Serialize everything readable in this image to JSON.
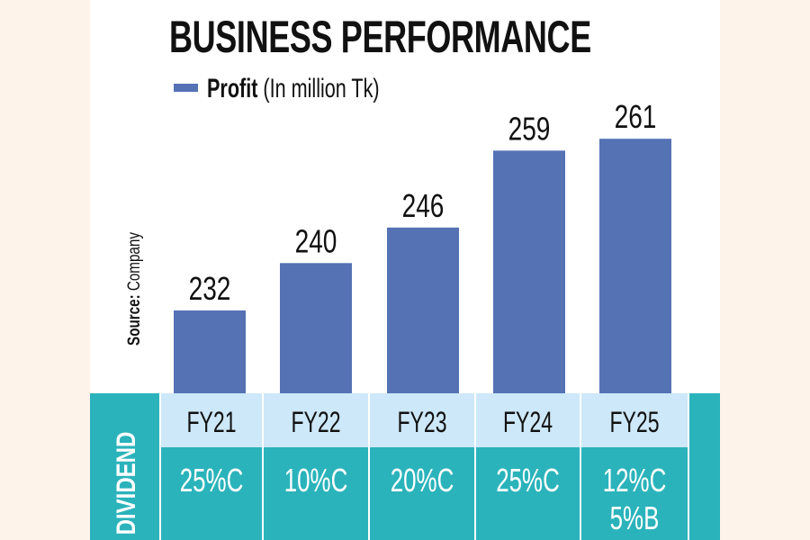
{
  "chart_data": {
    "type": "bar",
    "title": "BUSINESS PERFORMANCE",
    "legend": [
      {
        "name": "Profit",
        "suffix": " (In million Tk)",
        "color": "#5572b5"
      }
    ],
    "categories": [
      "FY21",
      "FY22",
      "FY23",
      "FY24",
      "FY25"
    ],
    "values": [
      232,
      240,
      246,
      259,
      261
    ],
    "data_labels": [
      "232",
      "240",
      "246",
      "259",
      "261"
    ],
    "ylim": [
      218,
      270
    ],
    "source_label": "Source:",
    "source_value": " Company",
    "table": {
      "row_label": "DIVIDEND",
      "dividends": [
        [
          "25%C"
        ],
        [
          "10%C"
        ],
        [
          "20%C"
        ],
        [
          "25%C"
        ],
        [
          "12%C",
          "5%B"
        ]
      ]
    },
    "colors": {
      "bar": "#5572b5",
      "teal": "#2bb3bb",
      "header": "#cde8f8",
      "background": "#fdf3ea"
    }
  }
}
